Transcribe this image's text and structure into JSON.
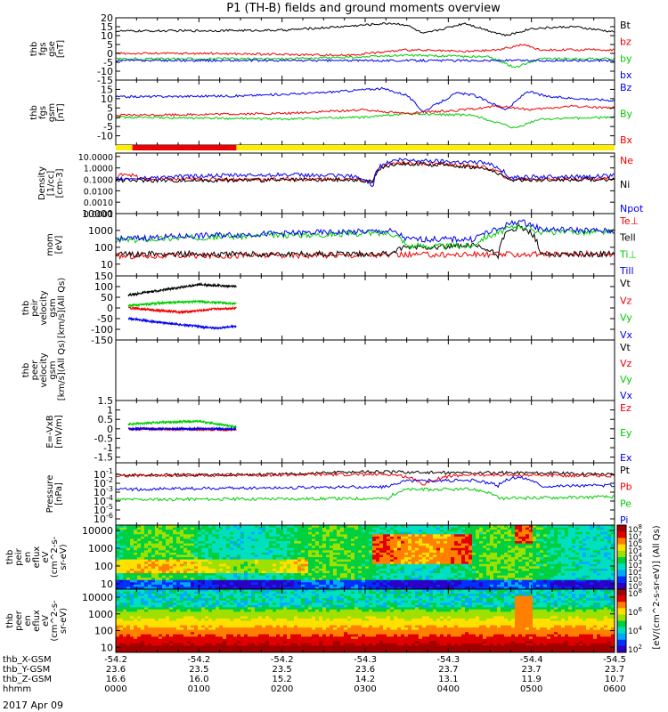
{
  "title": "P1 (TH-B) fields and ground moments overview",
  "date_label": "2017 Apr 09",
  "colors": {
    "black": "#000000",
    "red": "#ee0000",
    "green": "#00cc00",
    "blue": "#0000ee",
    "yellow": "#ffee00"
  },
  "time_axis": {
    "row_labels": [
      "thb_X-GSM",
      "thb_Y-GSM",
      "thb_Z-GSM",
      "hhmm"
    ],
    "columns": [
      [
        "-54.2",
        "23.6",
        "16.6",
        "0000"
      ],
      [
        "-54.2",
        "23.5",
        "16.0",
        "0100"
      ],
      [
        "-54.2",
        "23.5",
        "15.2",
        "0200"
      ],
      [
        "-54.3",
        "23.6",
        "14.2",
        "0300"
      ],
      [
        "-54.3",
        "23.7",
        "13.1",
        "0400"
      ],
      [
        "-54.4",
        "23.7",
        "11.9",
        "0500"
      ],
      [
        "-54.5",
        "23.7",
        "10.7",
        "0600"
      ]
    ]
  },
  "colorbar_label": "[eV/(cm^2-s-sr-eV)] (All Qs)",
  "mode_bar": {
    "red_span_hours": [
      0.2,
      1.45
    ],
    "yellow_span_hours": [
      0,
      6
    ]
  },
  "chart_data": [
    {
      "id": "p1",
      "type": "line",
      "ylabel": [
        "thb",
        "fgs",
        "gse",
        "[nT]"
      ],
      "ylim": [
        -15,
        20
      ],
      "yticks": [
        20,
        15,
        10,
        5,
        0,
        -5,
        -10,
        -15
      ],
      "series": [
        {
          "name": "Bt",
          "color": "black",
          "knots": [
            [
              0,
              12.5
            ],
            [
              2,
              13
            ],
            [
              2.7,
              15
            ],
            [
              3.3,
              17
            ],
            [
              3.5,
              16
            ],
            [
              3.7,
              11
            ],
            [
              4.2,
              17
            ],
            [
              4.4,
              14
            ],
            [
              4.7,
              10
            ],
            [
              5,
              14
            ],
            [
              5.5,
              15
            ],
            [
              6,
              12
            ]
          ]
        },
        {
          "name": "bz",
          "color": "red",
          "knots": [
            [
              0,
              0
            ],
            [
              1,
              0
            ],
            [
              2.8,
              -1
            ],
            [
              3.5,
              2
            ],
            [
              4.2,
              1
            ],
            [
              4.6,
              2
            ],
            [
              4.9,
              5
            ],
            [
              5.1,
              2
            ],
            [
              6,
              2
            ]
          ]
        },
        {
          "name": "by",
          "color": "green",
          "knots": [
            [
              0,
              -3
            ],
            [
              2,
              -3
            ],
            [
              3,
              -2
            ],
            [
              3.5,
              -1
            ],
            [
              4.5,
              -2
            ],
            [
              4.8,
              -8
            ],
            [
              5.1,
              -3
            ],
            [
              6,
              -3
            ]
          ]
        },
        {
          "name": "bx",
          "color": "blue",
          "knots": [
            [
              0,
              -4
            ],
            [
              6,
              -4
            ]
          ]
        }
      ]
    },
    {
      "id": "p2",
      "type": "line",
      "ylabel": [
        "thb",
        "fgs",
        "gsm",
        "[nT]"
      ],
      "ylim": [
        -15,
        20
      ],
      "yticks": [
        15,
        10,
        5,
        0,
        -5,
        -10
      ],
      "series": [
        {
          "name": "Bz",
          "color": "blue",
          "knots": [
            [
              0,
              11
            ],
            [
              1.5,
              11.5
            ],
            [
              2.4,
              13
            ],
            [
              3.2,
              15.5
            ],
            [
              3.5,
              12
            ],
            [
              3.7,
              3
            ],
            [
              4.1,
              13
            ],
            [
              4.3,
              12
            ],
            [
              4.7,
              4
            ],
            [
              4.95,
              14
            ],
            [
              5.2,
              11
            ],
            [
              6,
              9
            ]
          ]
        },
        {
          "name": "By",
          "color": "green",
          "knots": [
            [
              0,
              0
            ],
            [
              2,
              -1
            ],
            [
              3,
              0
            ],
            [
              3.5,
              2
            ],
            [
              4.3,
              1
            ],
            [
              4.8,
              -6
            ],
            [
              5.1,
              -1
            ],
            [
              6,
              0
            ]
          ]
        },
        {
          "name": "Bx",
          "color": "red",
          "knots": [
            [
              0,
              1
            ],
            [
              2,
              2
            ],
            [
              3,
              4
            ],
            [
              3.5,
              2
            ],
            [
              4.2,
              4
            ],
            [
              4.6,
              6
            ],
            [
              5,
              4
            ],
            [
              5.5,
              6
            ],
            [
              6,
              5
            ]
          ]
        }
      ]
    },
    {
      "id": "p3",
      "type": "line",
      "ylog": true,
      "ylabel": [
        "Density",
        "[1/cc]",
        "[cm-3]"
      ],
      "ylim": [
        0.0001,
        20
      ],
      "yticks": [
        "10.0000",
        "1.0000",
        "0.1000",
        "0.0100",
        "0.0010",
        "0.0001"
      ],
      "series": [
        {
          "name": "Ne",
          "color": "red",
          "knots": [
            [
              0,
              0.08
            ],
            [
              0.1,
              0.35
            ],
            [
              0.3,
              0.1
            ],
            [
              2.8,
              0.1
            ],
            [
              3.1,
              0.06
            ],
            [
              3.4,
              3
            ],
            [
              4.3,
              1.5
            ],
            [
              4.7,
              0.1
            ],
            [
              6,
              0.12
            ]
          ]
        },
        {
          "name": "Ni",
          "color": "black",
          "knots": [
            [
              0,
              0.08
            ],
            [
              2.8,
              0.09
            ],
            [
              3.1,
              0.07
            ],
            [
              3.4,
              2.5
            ],
            [
              4.3,
              1.2
            ],
            [
              4.7,
              0.09
            ],
            [
              6,
              0.1
            ]
          ]
        },
        {
          "name": "Npot",
          "color": "blue",
          "knots": [
            [
              0,
              0.1
            ],
            [
              1,
              0.2
            ],
            [
              2,
              0.25
            ],
            [
              2.8,
              0.2
            ],
            [
              3.1,
              0.02
            ],
            [
              3.4,
              5
            ],
            [
              4.4,
              3
            ],
            [
              4.7,
              0.15
            ],
            [
              6,
              0.2
            ]
          ]
        }
      ]
    },
    {
      "id": "p4",
      "type": "line",
      "ylog": true,
      "ylabel": [
        "mom",
        "[eV]"
      ],
      "ylim": [
        2,
        10000
      ],
      "yticks": [
        "10000",
        "1000",
        "100",
        "10"
      ],
      "series": [
        {
          "name": "Te⊥",
          "color": "red",
          "knots": [
            [
              0,
              30
            ],
            [
              6,
              40
            ]
          ]
        },
        {
          "name": "Tell",
          "color": "black",
          "knots": [
            [
              0,
              40
            ],
            [
              3.3,
              40
            ],
            [
              3.5,
              100
            ],
            [
              4.3,
              120
            ],
            [
              4.6,
              30
            ],
            [
              4.85,
              1500
            ],
            [
              5.1,
              40
            ],
            [
              6,
              40
            ]
          ]
        },
        {
          "name": "Ti⊥",
          "color": "green",
          "knots": [
            [
              0,
              250
            ],
            [
              3.3,
              700
            ],
            [
              3.5,
              120
            ],
            [
              4.3,
              120
            ],
            [
              4.6,
              700
            ],
            [
              4.85,
              2000
            ],
            [
              5.1,
              800
            ],
            [
              6,
              800
            ]
          ]
        },
        {
          "name": "Till",
          "color": "blue",
          "knots": [
            [
              0,
              300
            ],
            [
              3.3,
              900
            ],
            [
              3.5,
              300
            ],
            [
              4.3,
              300
            ],
            [
              4.6,
              1100
            ],
            [
              4.85,
              3500
            ],
            [
              5.1,
              1200
            ],
            [
              6,
              900
            ]
          ]
        }
      ]
    },
    {
      "id": "p5",
      "type": "line",
      "ylabel": [
        "thb",
        "peir",
        "velocity",
        "gsm",
        "[km/s](All Qs)"
      ],
      "ylim": [
        -150,
        150
      ],
      "yticks": [
        150,
        100,
        50,
        0,
        -50,
        -100,
        -150
      ],
      "xrange": [
        0.15,
        1.45
      ],
      "series": [
        {
          "name": "Vt",
          "color": "black",
          "knots": [
            [
              0.15,
              60
            ],
            [
              0.5,
              80
            ],
            [
              1,
              110
            ],
            [
              1.45,
              100
            ]
          ]
        },
        {
          "name": "Vz",
          "color": "red",
          "knots": [
            [
              0.15,
              0
            ],
            [
              0.8,
              -20
            ],
            [
              1.2,
              -5
            ],
            [
              1.45,
              0
            ]
          ]
        },
        {
          "name": "Vy",
          "color": "green",
          "knots": [
            [
              0.15,
              10
            ],
            [
              0.6,
              25
            ],
            [
              1,
              30
            ],
            [
              1.45,
              20
            ]
          ]
        },
        {
          "name": "Vx",
          "color": "blue",
          "knots": [
            [
              0.15,
              -50
            ],
            [
              0.7,
              -75
            ],
            [
              1.2,
              -95
            ],
            [
              1.45,
              -85
            ]
          ]
        }
      ]
    },
    {
      "id": "p6",
      "type": "line",
      "ylabel": [
        "thb",
        "peer",
        "velocity",
        "gsm",
        "[km/s](All Qs)"
      ],
      "ylim": [
        -150,
        150
      ],
      "yticks": [],
      "series": [
        {
          "name": "Vt",
          "color": "black",
          "knots": []
        },
        {
          "name": "Vz",
          "color": "red",
          "knots": []
        },
        {
          "name": "Vy",
          "color": "green",
          "knots": []
        },
        {
          "name": "Vx",
          "color": "blue",
          "knots": []
        }
      ]
    },
    {
      "id": "p7",
      "type": "line",
      "ylabel": [
        "E=-VxB",
        "[mV/m]"
      ],
      "ylim": [
        -1.8,
        1.5
      ],
      "yticks": [
        1.5,
        1.0,
        0.5,
        0.0,
        -0.5,
        -1.0,
        -1.5
      ],
      "xrange": [
        0.15,
        1.45
      ],
      "series": [
        {
          "name": "Ez",
          "color": "red",
          "knots": [
            [
              0.15,
              0
            ],
            [
              1.45,
              -0.05
            ]
          ]
        },
        {
          "name": "Ey",
          "color": "green",
          "knots": [
            [
              0.15,
              0.25
            ],
            [
              0.6,
              0.35
            ],
            [
              1,
              0.4
            ],
            [
              1.45,
              0.1
            ]
          ]
        },
        {
          "name": "Ex",
          "color": "blue",
          "knots": [
            [
              0.15,
              0
            ],
            [
              1.45,
              0
            ]
          ]
        }
      ]
    },
    {
      "id": "p8",
      "type": "line",
      "ylog": true,
      "ylabel": [
        "Pressure",
        "[nPa]"
      ],
      "ylim": [
        2e-07,
        2
      ],
      "yticks": [
        "10^-1",
        "10^-2",
        "10^-3",
        "10^-4",
        "10^-5",
        "10^-6"
      ],
      "series": [
        {
          "name": "Pt",
          "color": "black",
          "knots": [
            [
              0,
              0.08
            ],
            [
              2,
              0.1
            ],
            [
              3,
              0.2
            ],
            [
              4,
              0.15
            ],
            [
              5,
              0.15
            ],
            [
              6,
              0.1
            ]
          ]
        },
        {
          "name": "Pb",
          "color": "red",
          "knots": [
            [
              0,
              0.07
            ],
            [
              3.3,
              0.1
            ],
            [
              3.5,
              0.05
            ],
            [
              3.7,
              0.005
            ],
            [
              4.2,
              0.09
            ],
            [
              6,
              0.07
            ]
          ]
        },
        {
          "name": "Pe",
          "color": "green",
          "knots": [
            [
              0,
              0.00015
            ],
            [
              3.3,
              0.0002
            ],
            [
              3.5,
              0.002
            ],
            [
              4.3,
              0.002
            ],
            [
              4.6,
              0.0002
            ],
            [
              6,
              0.0003
            ]
          ]
        },
        {
          "name": "Pi",
          "color": "blue",
          "knots": [
            [
              0,
              0.002
            ],
            [
              3.3,
              0.004
            ],
            [
              3.5,
              0.02
            ],
            [
              4.3,
              0.02
            ],
            [
              4.6,
              0.005
            ],
            [
              4.85,
              0.05
            ],
            [
              5.1,
              0.005
            ],
            [
              6,
              0.006
            ]
          ]
        }
      ]
    },
    {
      "id": "p9",
      "type": "heatmap",
      "ylabel": [
        "thb",
        "peir",
        "en",
        "eflux",
        "eV",
        "(cm^2-s-",
        "sr-eV)"
      ],
      "ylog": true,
      "ylim": [
        5,
        20000
      ],
      "yticks": [
        "10000",
        "1000",
        "100",
        "10"
      ],
      "colorbar_ticks": [
        "10^8",
        "10^7",
        "10^6",
        "10^5",
        "10^4",
        "10^3",
        "10^2",
        "10^1",
        "10^0"
      ]
    },
    {
      "id": "p10",
      "type": "heatmap",
      "ylabel": [
        "thb",
        "peer",
        "en",
        "eflux",
        "eV",
        "(cm^2-s-",
        "sr-eV)"
      ],
      "ylog": true,
      "ylim": [
        5,
        30000
      ],
      "yticks": [
        "10000",
        "1000",
        "100",
        "10"
      ],
      "colorbar_ticks": [
        "10^8",
        "10^6",
        "10^4",
        "10^2"
      ]
    }
  ]
}
